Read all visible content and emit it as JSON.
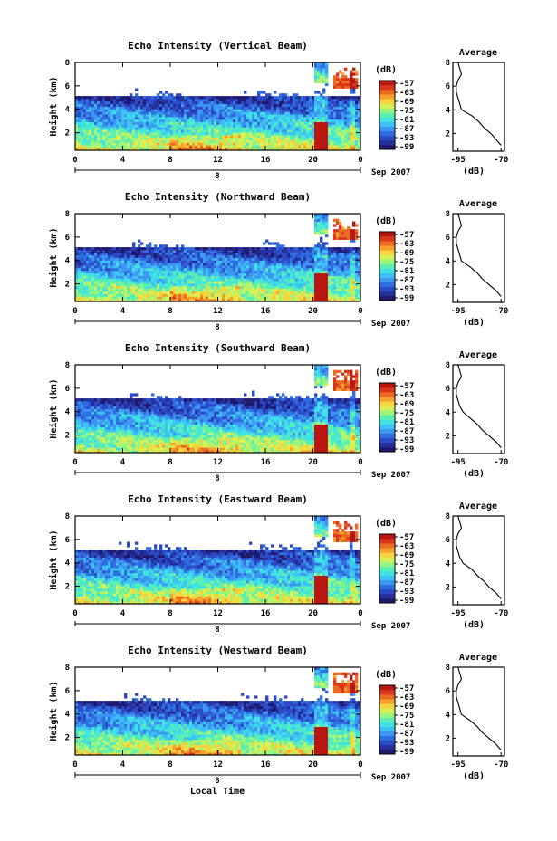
{
  "figure": {
    "xlabel": "Local Time",
    "date_label": "Sep 2007",
    "day_label": "8",
    "cbar_unit": "(dB)",
    "avg_title": "Average",
    "avg_xlabel": "(dB)",
    "ylabel": "Height (km)"
  },
  "palette": [
    "#1f1a6e",
    "#24309a",
    "#2c4ac4",
    "#2f6ee0",
    "#3d97f2",
    "#3cc2f4",
    "#3ee3e2",
    "#5cf0b0",
    "#9af57c",
    "#d6f055",
    "#f7d43b",
    "#f7a12d",
    "#ec6a22",
    "#d9361c",
    "#b91712"
  ],
  "chart_data": [
    {
      "type": "heatmap",
      "title": "Echo Intensity (Vertical Beam)",
      "xlabel": "",
      "ylabel": "Height (km)",
      "x_ticks": [
        "0",
        "4",
        "8",
        "12",
        "16",
        "20",
        "0"
      ],
      "y_ticks": [
        "2",
        "4",
        "6",
        "8"
      ],
      "xlim": [
        0,
        24
      ],
      "ylim": [
        0.5,
        8
      ],
      "cbar_ticks": [
        "-57",
        "-63",
        "-69",
        "-75",
        "-81",
        "-87",
        "-93",
        "-99"
      ],
      "zlim": [
        -99,
        -57
      ],
      "average": {
        "x_ticks": [
          "-95",
          "-70"
        ],
        "xlim": [
          -98,
          -68
        ],
        "height_km": [
          1,
          1.5,
          2,
          2.5,
          3,
          3.5,
          4,
          4.5,
          5,
          5.5,
          6,
          6.5,
          7,
          7.5,
          8
        ],
        "db": [
          -70,
          -73,
          -76,
          -80,
          -83,
          -87,
          -93,
          -94,
          -95,
          -96,
          -96,
          -95,
          -93,
          -94,
          -95
        ]
      }
    },
    {
      "type": "heatmap",
      "title": "Echo Intensity (Northward Beam)",
      "xlabel": "",
      "ylabel": "Height (km)",
      "x_ticks": [
        "0",
        "4",
        "8",
        "12",
        "16",
        "20",
        "0"
      ],
      "y_ticks": [
        "2",
        "4",
        "6",
        "8"
      ],
      "xlim": [
        0,
        24
      ],
      "ylim": [
        0.5,
        8
      ],
      "cbar_ticks": [
        "-57",
        "-63",
        "-69",
        "-75",
        "-81",
        "-87",
        "-93",
        "-99"
      ],
      "zlim": [
        -99,
        -57
      ],
      "average": {
        "x_ticks": [
          "-95",
          "-70"
        ],
        "xlim": [
          -98,
          -68
        ],
        "height_km": [
          1,
          1.5,
          2,
          2.5,
          3,
          3.5,
          4,
          4.5,
          5,
          5.5,
          6,
          6.5,
          7,
          7.5,
          8
        ],
        "db": [
          -70,
          -73,
          -77,
          -81,
          -84,
          -88,
          -93,
          -94,
          -95,
          -96,
          -96,
          -95,
          -93,
          -94,
          -95
        ]
      }
    },
    {
      "type": "heatmap",
      "title": "Echo Intensity (Southward Beam)",
      "xlabel": "",
      "ylabel": "Height (km)",
      "x_ticks": [
        "0",
        "4",
        "8",
        "12",
        "16",
        "20",
        "0"
      ],
      "y_ticks": [
        "2",
        "4",
        "6",
        "8"
      ],
      "xlim": [
        0,
        24
      ],
      "ylim": [
        0.5,
        8
      ],
      "cbar_ticks": [
        "-57",
        "-63",
        "-69",
        "-75",
        "-81",
        "-87",
        "-93",
        "-99"
      ],
      "zlim": [
        -99,
        -57
      ],
      "average": {
        "x_ticks": [
          "-95",
          "-70"
        ],
        "xlim": [
          -98,
          -68
        ],
        "height_km": [
          1,
          1.5,
          2,
          2.5,
          3,
          3.5,
          4,
          4.5,
          5,
          5.5,
          6,
          6.5,
          7,
          7.5,
          8
        ],
        "db": [
          -70,
          -73,
          -77,
          -81,
          -84,
          -88,
          -92,
          -94,
          -95,
          -96,
          -96,
          -95,
          -93,
          -94,
          -95
        ]
      }
    },
    {
      "type": "heatmap",
      "title": "Echo Intensity (Eastward Beam)",
      "xlabel": "",
      "ylabel": "Height (km)",
      "x_ticks": [
        "0",
        "4",
        "8",
        "12",
        "16",
        "20",
        "0"
      ],
      "y_ticks": [
        "2",
        "4",
        "6",
        "8"
      ],
      "xlim": [
        0,
        24
      ],
      "ylim": [
        0.5,
        8
      ],
      "cbar_ticks": [
        "-57",
        "-63",
        "-69",
        "-75",
        "-81",
        "-87",
        "-93",
        "-99"
      ],
      "zlim": [
        -99,
        -57
      ],
      "average": {
        "x_ticks": [
          "-95",
          "-70"
        ],
        "xlim": [
          -98,
          -68
        ],
        "height_km": [
          1,
          1.5,
          2,
          2.5,
          3,
          3.5,
          4,
          4.5,
          5,
          5.5,
          6,
          6.5,
          7,
          7.5,
          8
        ],
        "db": [
          -70,
          -73,
          -77,
          -80,
          -84,
          -87,
          -92,
          -94,
          -95,
          -96,
          -96,
          -95,
          -93,
          -94,
          -95
        ]
      }
    },
    {
      "type": "heatmap",
      "title": "Echo Intensity (Westward Beam)",
      "xlabel": "Local Time",
      "ylabel": "Height (km)",
      "x_ticks": [
        "0",
        "4",
        "8",
        "12",
        "16",
        "20",
        "0"
      ],
      "y_ticks": [
        "2",
        "4",
        "6",
        "8"
      ],
      "xlim": [
        0,
        24
      ],
      "ylim": [
        0.5,
        8
      ],
      "cbar_ticks": [
        "-57",
        "-63",
        "-69",
        "-75",
        "-81",
        "-87",
        "-93",
        "-99"
      ],
      "zlim": [
        -99,
        -57
      ],
      "average": {
        "x_ticks": [
          "-95",
          "-70"
        ],
        "xlim": [
          -98,
          -68
        ],
        "height_km": [
          1,
          1.5,
          2,
          2.5,
          3,
          3.5,
          4,
          4.5,
          5,
          5.5,
          6,
          6.5,
          7,
          7.5,
          8
        ],
        "db": [
          -70,
          -73,
          -77,
          -81,
          -84,
          -88,
          -93,
          -94,
          -95,
          -96,
          -96,
          -95,
          -93,
          -94,
          -95
        ]
      }
    }
  ]
}
